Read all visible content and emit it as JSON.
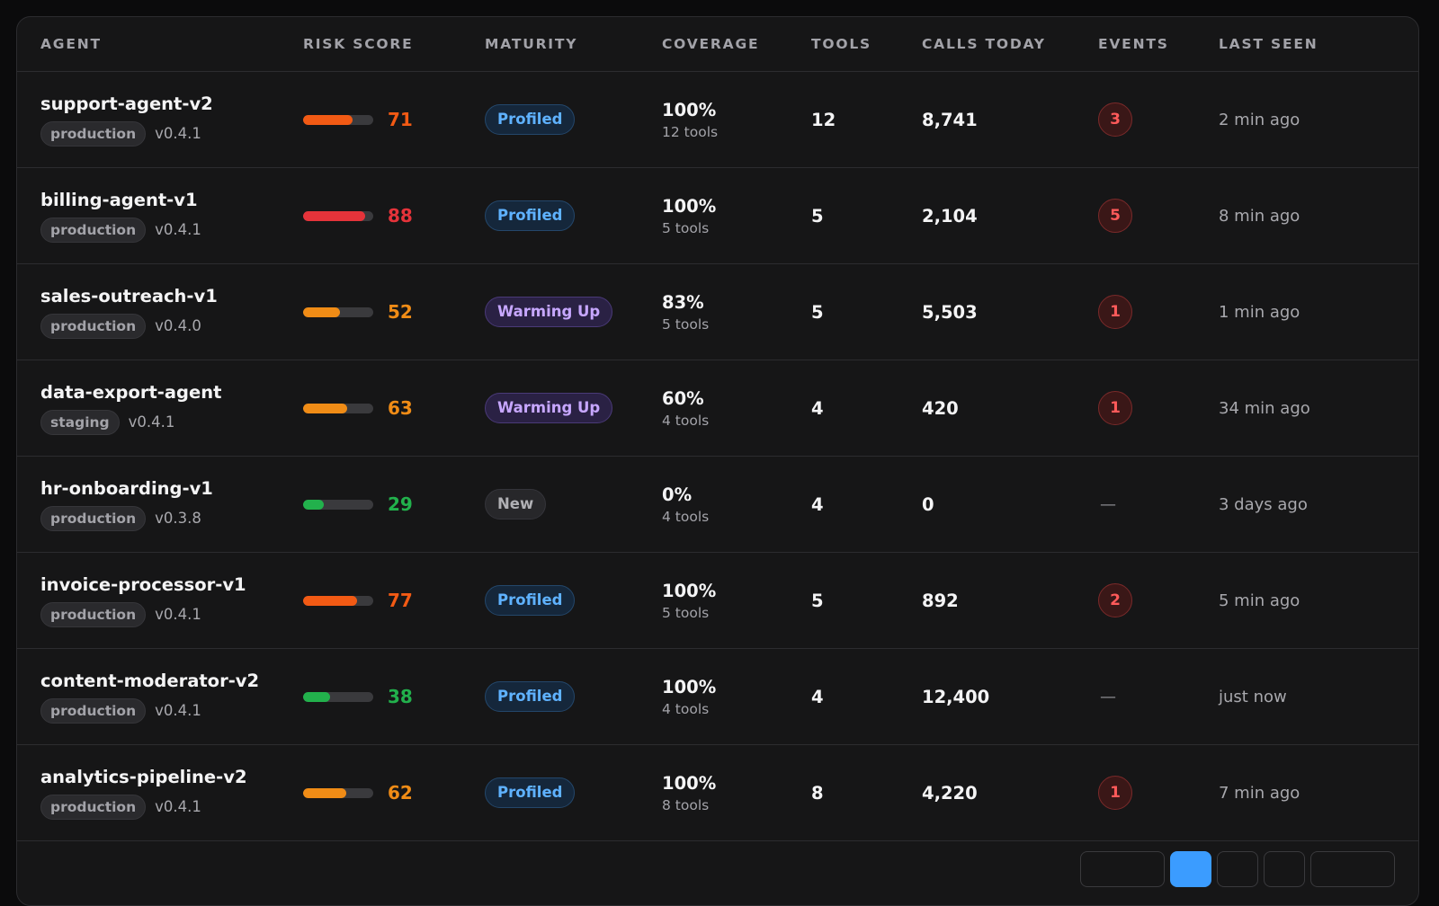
{
  "columns": [
    "AGENT",
    "RISK SCORE",
    "MATURITY",
    "COVERAGE",
    "TOOLS",
    "CALLS TODAY",
    "EVENTS",
    "LAST SEEN"
  ],
  "colors": {
    "risk_red": "#e5333a",
    "risk_orange_red": "#f25a14",
    "risk_orange": "#f08c16",
    "risk_green": "#22b14c"
  },
  "rows": [
    {
      "name": "support-agent-v2",
      "env": "production",
      "version": "v0.4.1",
      "risk": 71,
      "risk_color": "#f25a14",
      "maturity": "Profiled",
      "maturity_kind": "profiled",
      "coverage": "100%",
      "coverage_tools": "12 tools",
      "tools": "12",
      "calls": "8,741",
      "events": "3",
      "last_seen": "2 min ago"
    },
    {
      "name": "billing-agent-v1",
      "env": "production",
      "version": "v0.4.1",
      "risk": 88,
      "risk_color": "#e5333a",
      "maturity": "Profiled",
      "maturity_kind": "profiled",
      "coverage": "100%",
      "coverage_tools": "5 tools",
      "tools": "5",
      "calls": "2,104",
      "events": "5",
      "last_seen": "8 min ago"
    },
    {
      "name": "sales-outreach-v1",
      "env": "production",
      "version": "v0.4.0",
      "risk": 52,
      "risk_color": "#f08c16",
      "maturity": "Warming Up",
      "maturity_kind": "warming",
      "coverage": "83%",
      "coverage_tools": "5 tools",
      "tools": "5",
      "calls": "5,503",
      "events": "1",
      "last_seen": "1 min ago"
    },
    {
      "name": "data-export-agent",
      "env": "staging",
      "version": "v0.4.1",
      "risk": 63,
      "risk_color": "#f08c16",
      "maturity": "Warming Up",
      "maturity_kind": "warming",
      "coverage": "60%",
      "coverage_tools": "4 tools",
      "tools": "4",
      "calls": "420",
      "events": "1",
      "last_seen": "34 min ago"
    },
    {
      "name": "hr-onboarding-v1",
      "env": "production",
      "version": "v0.3.8",
      "risk": 29,
      "risk_color": "#22b14c",
      "maturity": "New",
      "maturity_kind": "new",
      "coverage": "0%",
      "coverage_tools": "4 tools",
      "tools": "4",
      "calls": "0",
      "events": "—",
      "last_seen": "3 days ago"
    },
    {
      "name": "invoice-processor-v1",
      "env": "production",
      "version": "v0.4.1",
      "risk": 77,
      "risk_color": "#f25a14",
      "maturity": "Profiled",
      "maturity_kind": "profiled",
      "coverage": "100%",
      "coverage_tools": "5 tools",
      "tools": "5",
      "calls": "892",
      "events": "2",
      "last_seen": "5 min ago"
    },
    {
      "name": "content-moderator-v2",
      "env": "production",
      "version": "v0.4.1",
      "risk": 38,
      "risk_color": "#22b14c",
      "maturity": "Profiled",
      "maturity_kind": "profiled",
      "coverage": "100%",
      "coverage_tools": "4 tools",
      "tools": "4",
      "calls": "12,400",
      "events": "—",
      "last_seen": "just now"
    },
    {
      "name": "analytics-pipeline-v2",
      "env": "production",
      "version": "v0.4.1",
      "risk": 62,
      "risk_color": "#f08c16",
      "maturity": "Profiled",
      "maturity_kind": "profiled",
      "coverage": "100%",
      "coverage_tools": "8 tools",
      "tools": "8",
      "calls": "4,220",
      "events": "1",
      "last_seen": "7 min ago"
    }
  ],
  "pagination": {
    "active_page": 1
  }
}
